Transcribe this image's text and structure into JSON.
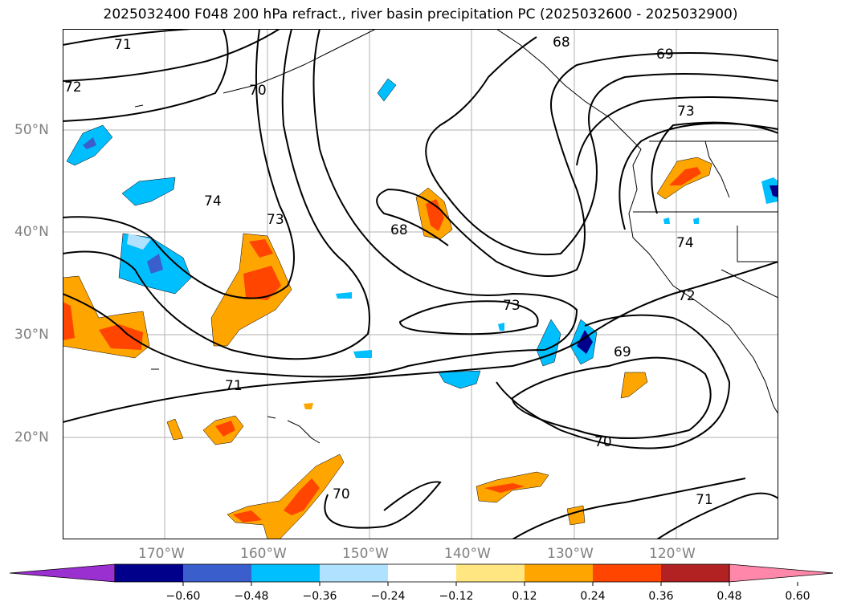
{
  "title": "2025032400 F048 200 hPa refract., river basin precipitation PC (2025032600 - 2025032900)",
  "lat_labels": [
    "50°N",
    "40°N",
    "30°N",
    "20°N"
  ],
  "lon_labels": [
    "170°W",
    "160°W",
    "150°W",
    "140°W",
    "130°W",
    "120°W"
  ],
  "contour_labels": [
    "71",
    "72",
    "70",
    "68",
    "69",
    "73",
    "74",
    "73",
    "68",
    "74",
    "72",
    "73",
    "69",
    "71",
    "70",
    "70",
    "71"
  ],
  "colorbar": {
    "ticks": [
      "−0.60",
      "−0.48",
      "−0.36",
      "−0.24",
      "−0.12",
      "0.12",
      "0.24",
      "0.36",
      "0.48",
      "0.60"
    ],
    "colors": [
      "#9b30d0",
      "#00008b",
      "#3a5fcd",
      "#00bfff",
      "#b0e2ff",
      "#ffffff",
      "#ffe680",
      "#ffa500",
      "#ff4500",
      "#b22222",
      "#ff88aa"
    ]
  }
}
